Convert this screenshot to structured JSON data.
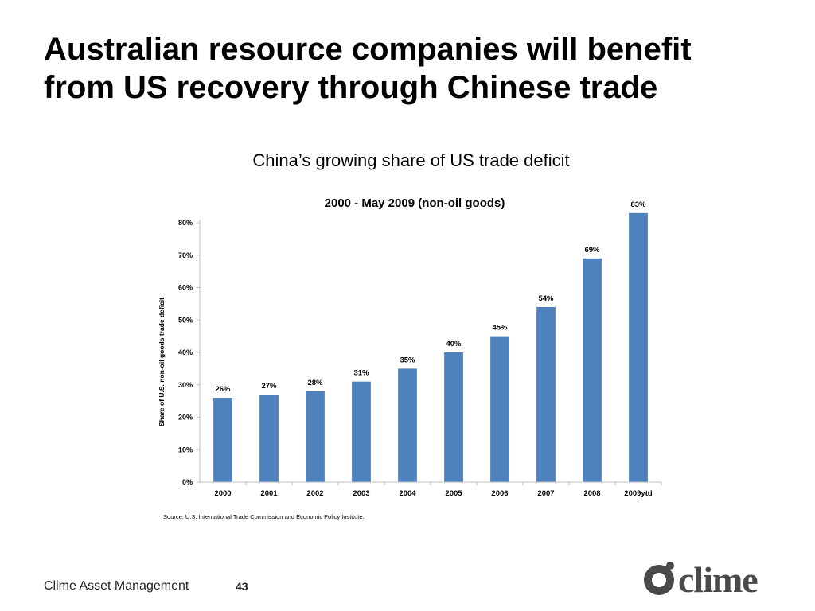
{
  "slide": {
    "title_line1": "Australian resource companies will benefit",
    "title_line2": "from US recovery through Chinese trade",
    "chart_heading": "China’s growing share of US trade deficit"
  },
  "footer": {
    "company": "Clime Asset Management",
    "page": "43",
    "logo_text": "clime"
  },
  "colors": {
    "bar": "#4f81bd",
    "axis": "#bfbfbf",
    "text": "#000000",
    "logo": "#4a4a4a"
  },
  "chart_data": {
    "type": "bar",
    "title": "2000 - May 2009 (non-oil goods)",
    "ylabel": "Share of U.S. non-oil goods trade deficit",
    "xlabel": "",
    "categories": [
      "2000",
      "2001",
      "2002",
      "2003",
      "2004",
      "2005",
      "2006",
      "2007",
      "2008",
      "2009ytd"
    ],
    "values": [
      26,
      27,
      28,
      31,
      35,
      40,
      45,
      54,
      69,
      83
    ],
    "data_labels": [
      "26%",
      "27%",
      "28%",
      "31%",
      "35%",
      "40%",
      "45%",
      "54%",
      "69%",
      "83%"
    ],
    "ylim": [
      0,
      80
    ],
    "yticks": [
      0,
      10,
      20,
      30,
      40,
      50,
      60,
      70,
      80
    ],
    "ytick_labels": [
      "0%",
      "10%",
      "20%",
      "30%",
      "40%",
      "50%",
      "60%",
      "70%",
      "80%"
    ],
    "grid": false,
    "legend": "none",
    "source": "Source:  U.S. International Trade Commission and Economic Policy Institute."
  }
}
